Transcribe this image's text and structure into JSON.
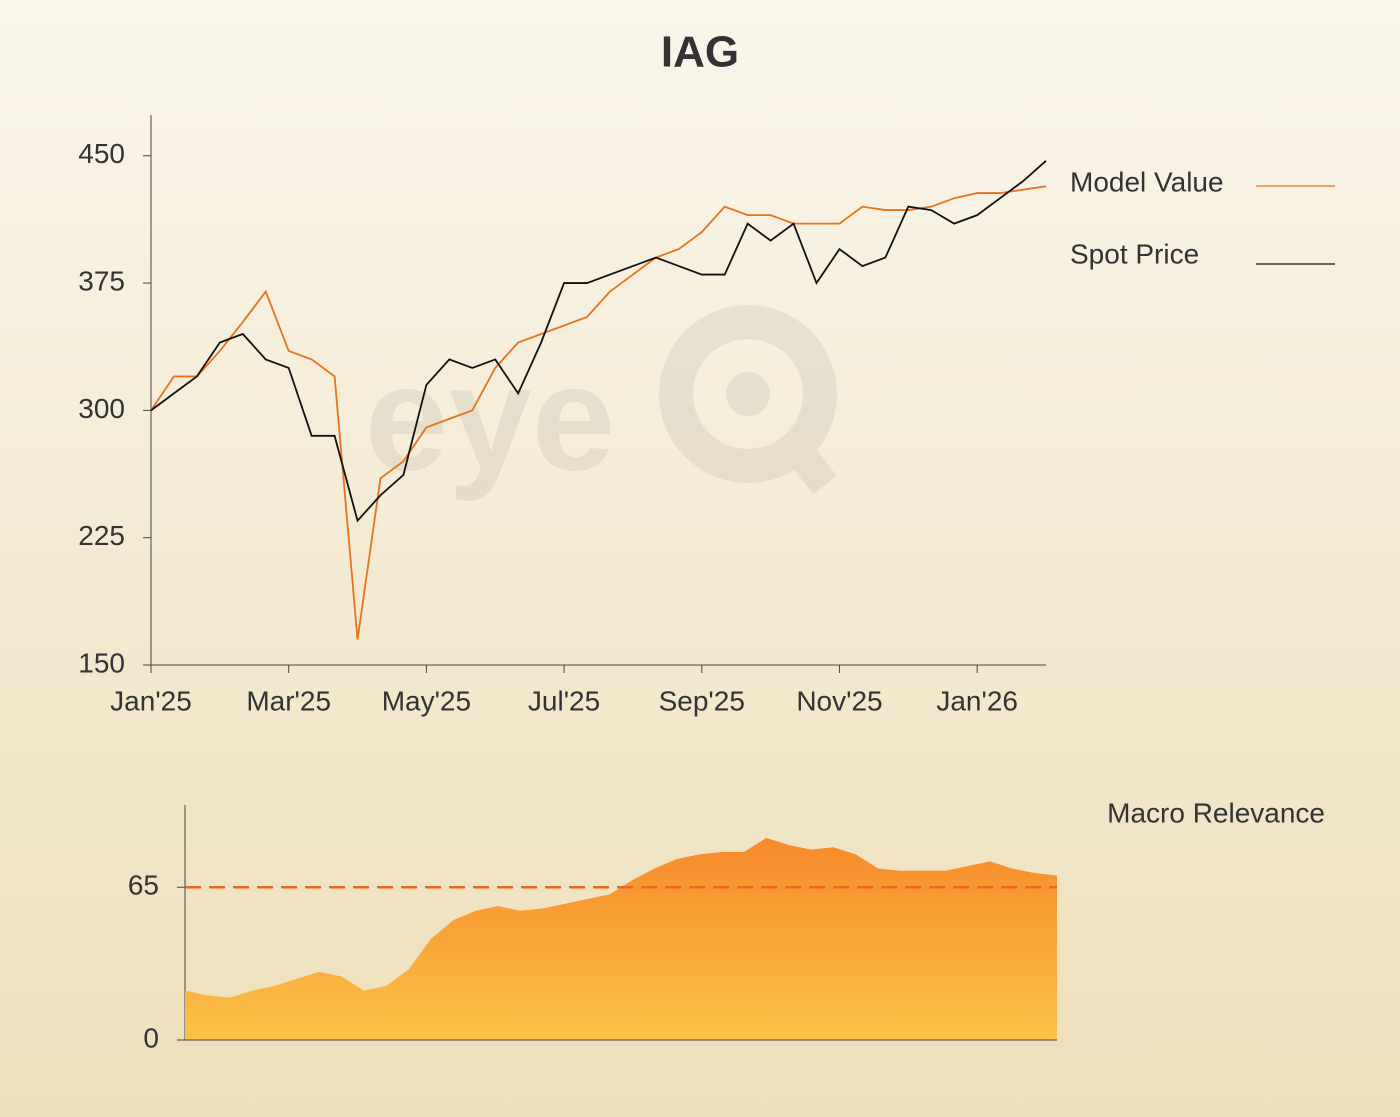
{
  "chart_data": [
    {
      "type": "line",
      "title": "IAG",
      "watermark": "eye",
      "categories": [
        "Jan'25",
        null,
        null,
        null,
        null,
        null,
        "Mar'25",
        null,
        null,
        null,
        null,
        null,
        "May'25",
        null,
        null,
        null,
        null,
        null,
        "Jul'25",
        null,
        null,
        null,
        null,
        null,
        "Sep'25",
        null,
        null,
        null,
        null,
        null,
        "Nov'25",
        null,
        null,
        null,
        null,
        null,
        "Jan'26",
        null,
        null,
        null
      ],
      "series": [
        {
          "name": "Model Value",
          "color": "#e8731e",
          "values": [
            300,
            320,
            320,
            335,
            352,
            370,
            335,
            330,
            320,
            165,
            260,
            270,
            290,
            295,
            300,
            325,
            340,
            345,
            350,
            355,
            370,
            380,
            390,
            395,
            405,
            420,
            415,
            415,
            410,
            410,
            410,
            420,
            418,
            418,
            420,
            425,
            428,
            428,
            430,
            432
          ]
        },
        {
          "name": "Spot Price",
          "color": "#111111",
          "values": [
            300,
            310,
            320,
            340,
            345,
            330,
            325,
            285,
            285,
            235,
            250,
            262,
            315,
            330,
            325,
            330,
            310,
            340,
            375,
            375,
            380,
            385,
            390,
            385,
            380,
            380,
            410,
            400,
            410,
            375,
            395,
            385,
            390,
            420,
            418,
            410,
            415,
            425,
            435,
            447
          ]
        }
      ],
      "ylim": [
        150,
        474
      ],
      "yticks": [
        150,
        225,
        300,
        375,
        450
      ],
      "legend": "right"
    },
    {
      "type": "area",
      "name": "Macro Relevance",
      "color": "#f7902a",
      "values": [
        21,
        19,
        18,
        21,
        23,
        26,
        29,
        27,
        21,
        23,
        30,
        43,
        51,
        55,
        57,
        55,
        56,
        58,
        60,
        62,
        68,
        73,
        77,
        79,
        80,
        80,
        86,
        83,
        81,
        82,
        79,
        73,
        72,
        72,
        72,
        74,
        76,
        73,
        71,
        70
      ],
      "threshold": 65,
      "threshold_color": "#f0661e",
      "ylim": [
        0,
        100
      ],
      "yticks": [
        0,
        65
      ]
    }
  ]
}
